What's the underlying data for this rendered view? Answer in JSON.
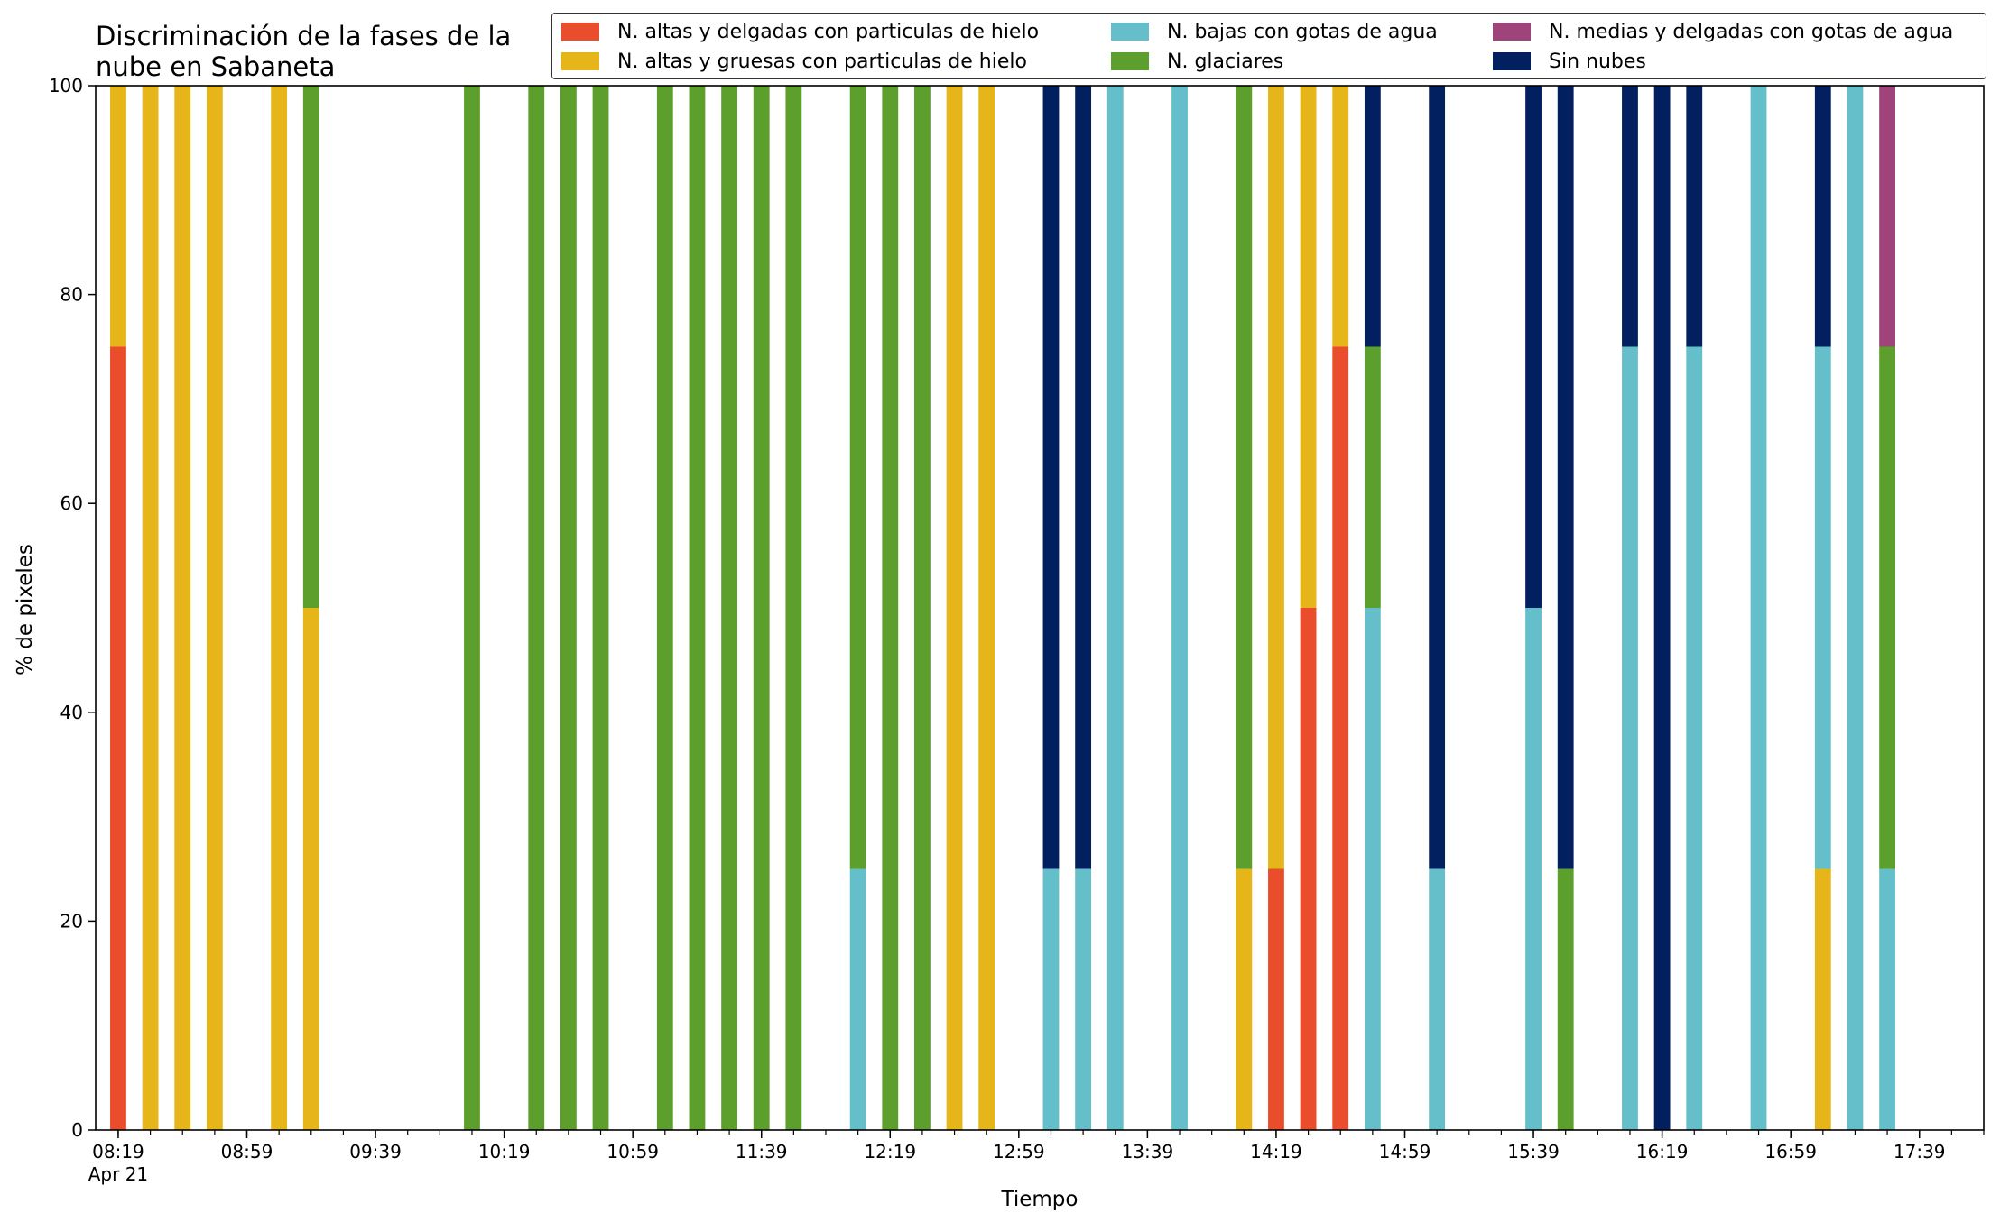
{
  "chart_data": {
    "type": "bar",
    "stacked": true,
    "title_lines": [
      "Discriminación de la fases de la",
      "nube en Sabaneta"
    ],
    "xlabel": "Tiempo",
    "ylabel": "% de pixeles",
    "ylim": [
      0,
      100
    ],
    "yticks": [
      0,
      20,
      40,
      60,
      80,
      100
    ],
    "xlim": [
      "08:12",
      "17:59"
    ],
    "x_tick_labels": [
      "08:19",
      "08:59",
      "09:39",
      "10:19",
      "10:59",
      "11:39",
      "12:19",
      "12:59",
      "13:39",
      "14:19",
      "14:59",
      "15:39",
      "16:19",
      "16:59",
      "17:39"
    ],
    "x_tick_sublabel": "Apr 21",
    "minor_tick_minutes": 10,
    "grid": false,
    "legend_position": "top-right",
    "series": [
      {
        "name": "N. altas y delgadas con particulas de hielo",
        "color": "#ea4d2c"
      },
      {
        "name": "N. altas y gruesas con particulas de hielo",
        "color": "#e5b519"
      },
      {
        "name": "N. bajas con gotas de agua",
        "color": "#65bfcb"
      },
      {
        "name": "N. glaciares",
        "color": "#5c9f2c"
      },
      {
        "name": "N. medias y delgadas con gotas de agua",
        "color": "#9f447a"
      },
      {
        "name": "Sin nubes",
        "color": "#022060"
      }
    ],
    "bar_series_order": [
      "N. altas y delgadas con particulas de hielo",
      "N. altas y gruesas con particulas de hielo",
      "N. bajas con gotas de agua",
      "N. glaciares",
      "N. medias y delgadas con gotas de agua",
      "Sin nubes"
    ],
    "bars": [
      {
        "time": "08:19",
        "values": [
          75,
          25,
          0,
          0,
          0,
          0
        ]
      },
      {
        "time": "08:29",
        "values": [
          0,
          100,
          0,
          0,
          0,
          0
        ]
      },
      {
        "time": "08:39",
        "values": [
          0,
          100,
          0,
          0,
          0,
          0
        ]
      },
      {
        "time": "08:49",
        "values": [
          0,
          100,
          0,
          0,
          0,
          0
        ]
      },
      {
        "time": "09:09",
        "values": [
          0,
          100,
          0,
          0,
          0,
          0
        ]
      },
      {
        "time": "09:19",
        "values": [
          0,
          50,
          0,
          50,
          0,
          0
        ]
      },
      {
        "time": "10:09",
        "values": [
          0,
          0,
          0,
          100,
          0,
          0
        ]
      },
      {
        "time": "10:29",
        "values": [
          0,
          0,
          0,
          100,
          0,
          0
        ]
      },
      {
        "time": "10:39",
        "values": [
          0,
          0,
          0,
          100,
          0,
          0
        ]
      },
      {
        "time": "10:49",
        "values": [
          0,
          0,
          0,
          100,
          0,
          0
        ]
      },
      {
        "time": "11:09",
        "values": [
          0,
          0,
          0,
          100,
          0,
          0
        ]
      },
      {
        "time": "11:19",
        "values": [
          0,
          0,
          0,
          100,
          0,
          0
        ]
      },
      {
        "time": "11:29",
        "values": [
          0,
          0,
          0,
          100,
          0,
          0
        ]
      },
      {
        "time": "11:39",
        "values": [
          0,
          0,
          0,
          100,
          0,
          0
        ]
      },
      {
        "time": "11:49",
        "values": [
          0,
          0,
          0,
          100,
          0,
          0
        ]
      },
      {
        "time": "12:09",
        "values": [
          0,
          0,
          25,
          75,
          0,
          0
        ]
      },
      {
        "time": "12:19",
        "values": [
          0,
          0,
          0,
          100,
          0,
          0
        ]
      },
      {
        "time": "12:29",
        "values": [
          0,
          0,
          0,
          100,
          0,
          0
        ]
      },
      {
        "time": "12:39",
        "values": [
          0,
          100,
          0,
          0,
          0,
          0
        ]
      },
      {
        "time": "12:49",
        "values": [
          0,
          100,
          0,
          0,
          0,
          0
        ]
      },
      {
        "time": "13:09",
        "values": [
          0,
          0,
          25,
          0,
          0,
          75
        ]
      },
      {
        "time": "13:19",
        "values": [
          0,
          0,
          25,
          0,
          0,
          75
        ]
      },
      {
        "time": "13:29",
        "values": [
          0,
          0,
          100,
          0,
          0,
          0
        ]
      },
      {
        "time": "13:49",
        "values": [
          0,
          0,
          100,
          0,
          0,
          0
        ]
      },
      {
        "time": "14:09",
        "values": [
          0,
          25,
          0,
          75,
          0,
          0
        ]
      },
      {
        "time": "14:19",
        "values": [
          25,
          75,
          0,
          0,
          0,
          0
        ]
      },
      {
        "time": "14:29",
        "values": [
          50,
          50,
          0,
          0,
          0,
          0
        ]
      },
      {
        "time": "14:39",
        "values": [
          75,
          25,
          0,
          0,
          0,
          0
        ]
      },
      {
        "time": "14:49",
        "values": [
          0,
          0,
          50,
          25,
          0,
          25
        ]
      },
      {
        "time": "15:09",
        "values": [
          0,
          0,
          25,
          0,
          0,
          75
        ]
      },
      {
        "time": "15:39",
        "values": [
          0,
          0,
          50,
          0,
          0,
          50
        ]
      },
      {
        "time": "15:49",
        "values": [
          0,
          0,
          0,
          25,
          0,
          75
        ]
      },
      {
        "time": "16:09",
        "values": [
          0,
          0,
          75,
          0,
          0,
          25
        ]
      },
      {
        "time": "16:19",
        "values": [
          0,
          0,
          0,
          0,
          0,
          100
        ]
      },
      {
        "time": "16:29",
        "values": [
          0,
          0,
          75,
          0,
          0,
          25
        ]
      },
      {
        "time": "16:49",
        "values": [
          0,
          0,
          100,
          0,
          0,
          0
        ]
      },
      {
        "time": "17:09",
        "values": [
          0,
          25,
          50,
          0,
          0,
          25
        ]
      },
      {
        "time": "17:19",
        "values": [
          0,
          0,
          100,
          0,
          0,
          0
        ]
      },
      {
        "time": "17:29",
        "values": [
          0,
          0,
          25,
          50,
          25,
          0
        ]
      }
    ]
  }
}
